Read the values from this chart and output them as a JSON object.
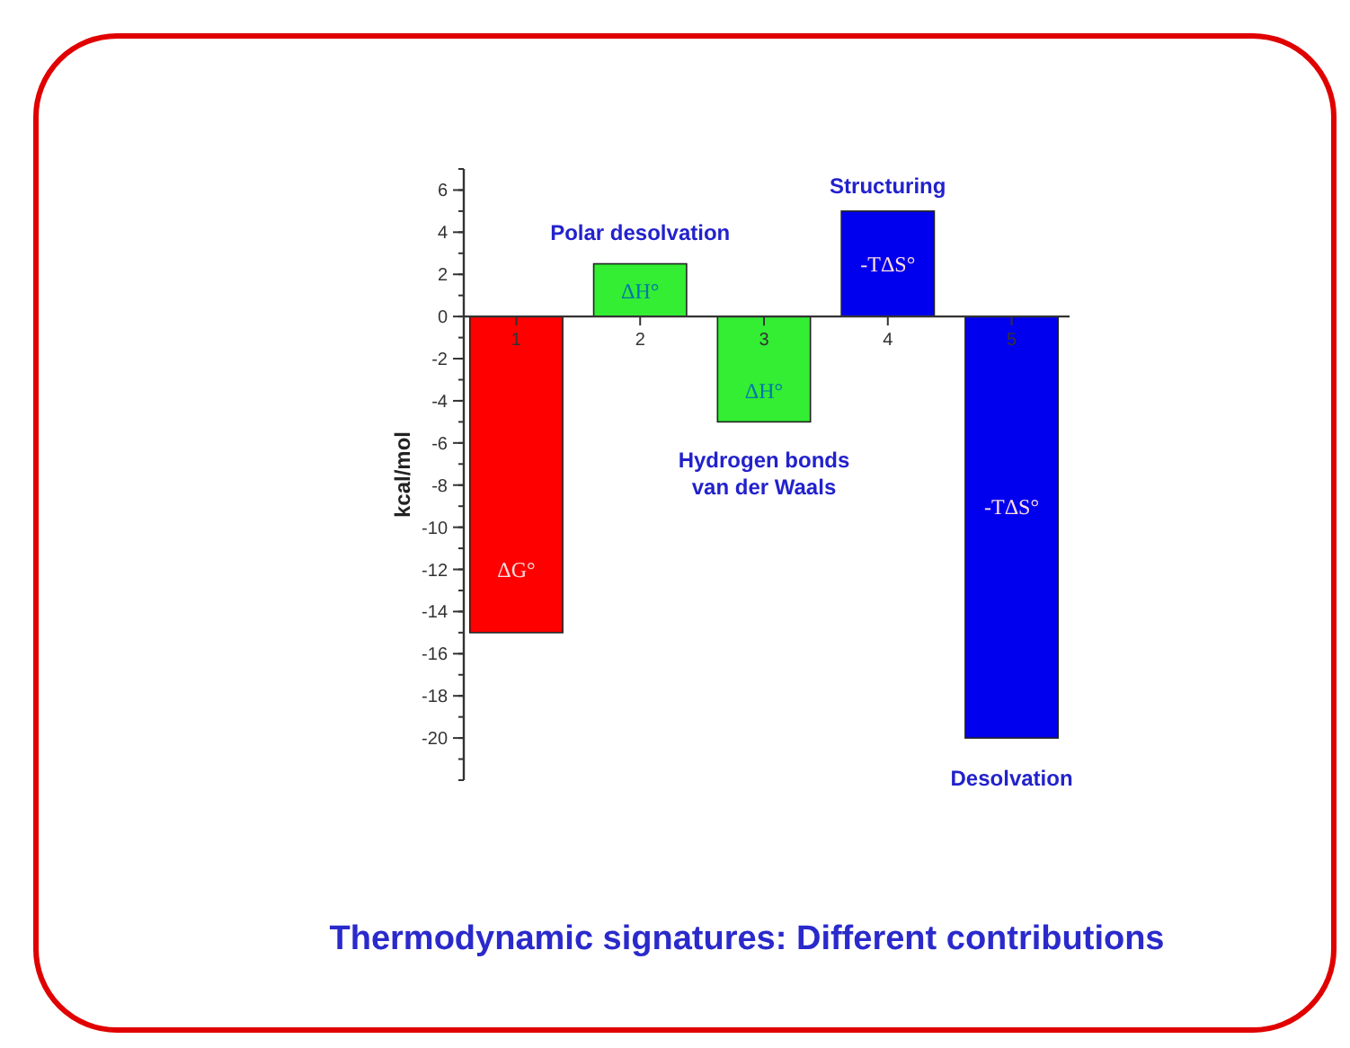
{
  "chart_data": {
    "type": "bar",
    "title": "Thermodynamic signatures: Different contributions",
    "ylabel": "kcal/mol",
    "categories": [
      "1",
      "2",
      "3",
      "4",
      "5"
    ],
    "values": [
      -15,
      2.5,
      -5,
      5,
      -20
    ],
    "colors": [
      "#ff0000",
      "#33ee33",
      "#33ee33",
      "#0000ee",
      "#0000ee"
    ],
    "ylim": [
      -22,
      7
    ],
    "yticks": [
      -20,
      -18,
      -16,
      -14,
      -12,
      -10,
      -8,
      -6,
      -4,
      -2,
      0,
      2,
      4,
      6
    ],
    "grid": false,
    "annotations": [
      "ΔG°",
      "ΔH°",
      "ΔH°",
      "-TΔS°",
      "-TΔS°",
      "Polar desolvation",
      "Structuring",
      "Hydrogen bonds\nvan der Waals",
      "Desolvation"
    ]
  }
}
